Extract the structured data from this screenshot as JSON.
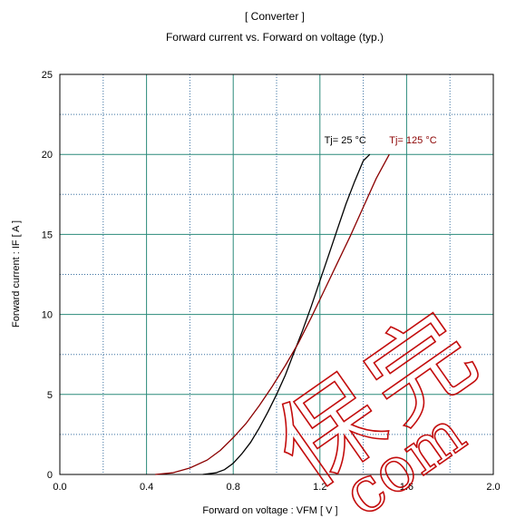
{
  "colors": {
    "grid_major": "#2a8a7a",
    "grid_minor": "#3a70a0",
    "frame": "#000000",
    "series_25": "#000000",
    "series_125": "#8b0000",
    "watermark": "#c00000"
  },
  "chart_data": {
    "type": "line",
    "title": "[ Converter ]",
    "subtitle": "Forward current  vs.  Forward on voltage  (typ.)",
    "xlabel": "Forward on voltage  :  VFM  [ V ]",
    "ylabel": "Forward current  :  IF  [ A ]",
    "xlim": [
      0.0,
      2.0
    ],
    "ylim": [
      0,
      25
    ],
    "xticks": [
      "0.0",
      "0.4",
      "0.8",
      "1.2",
      "1.6",
      "2.0"
    ],
    "yticks": [
      "0",
      "5",
      "10",
      "15",
      "20",
      "25"
    ],
    "grid": true,
    "series": [
      {
        "name": "Tj= 25 °C",
        "color": "#000000",
        "x": [
          0.66,
          0.72,
          0.76,
          0.8,
          0.84,
          0.88,
          0.92,
          0.96,
          1.0,
          1.04,
          1.08,
          1.12,
          1.16,
          1.2,
          1.24,
          1.28,
          1.32,
          1.36,
          1.4,
          1.43
        ],
        "y": [
          0.0,
          0.1,
          0.3,
          0.7,
          1.3,
          2.0,
          2.9,
          3.9,
          5.0,
          6.2,
          7.6,
          9.0,
          10.5,
          12.1,
          13.7,
          15.3,
          16.9,
          18.3,
          19.6,
          20.0
        ]
      },
      {
        "name": "Tj= 125 °C",
        "color": "#8b0000",
        "x": [
          0.44,
          0.52,
          0.6,
          0.68,
          0.74,
          0.8,
          0.86,
          0.92,
          0.98,
          1.04,
          1.1,
          1.16,
          1.22,
          1.28,
          1.34,
          1.4,
          1.46,
          1.52
        ],
        "y": [
          0.0,
          0.1,
          0.4,
          0.9,
          1.5,
          2.3,
          3.2,
          4.3,
          5.5,
          6.8,
          8.2,
          9.8,
          11.5,
          13.2,
          14.9,
          16.7,
          18.5,
          20.0
        ]
      }
    ],
    "annotations": [
      {
        "text": "Tj= 25 °C",
        "x": 1.22,
        "y": 20.7,
        "color": "#000000"
      },
      {
        "text": "Tj= 125 °C",
        "x": 1.52,
        "y": 20.7,
        "color": "#8b0000"
      }
    ]
  },
  "watermark": {
    "chars": [
      "保",
      "完"
    ],
    "latin": "com"
  }
}
